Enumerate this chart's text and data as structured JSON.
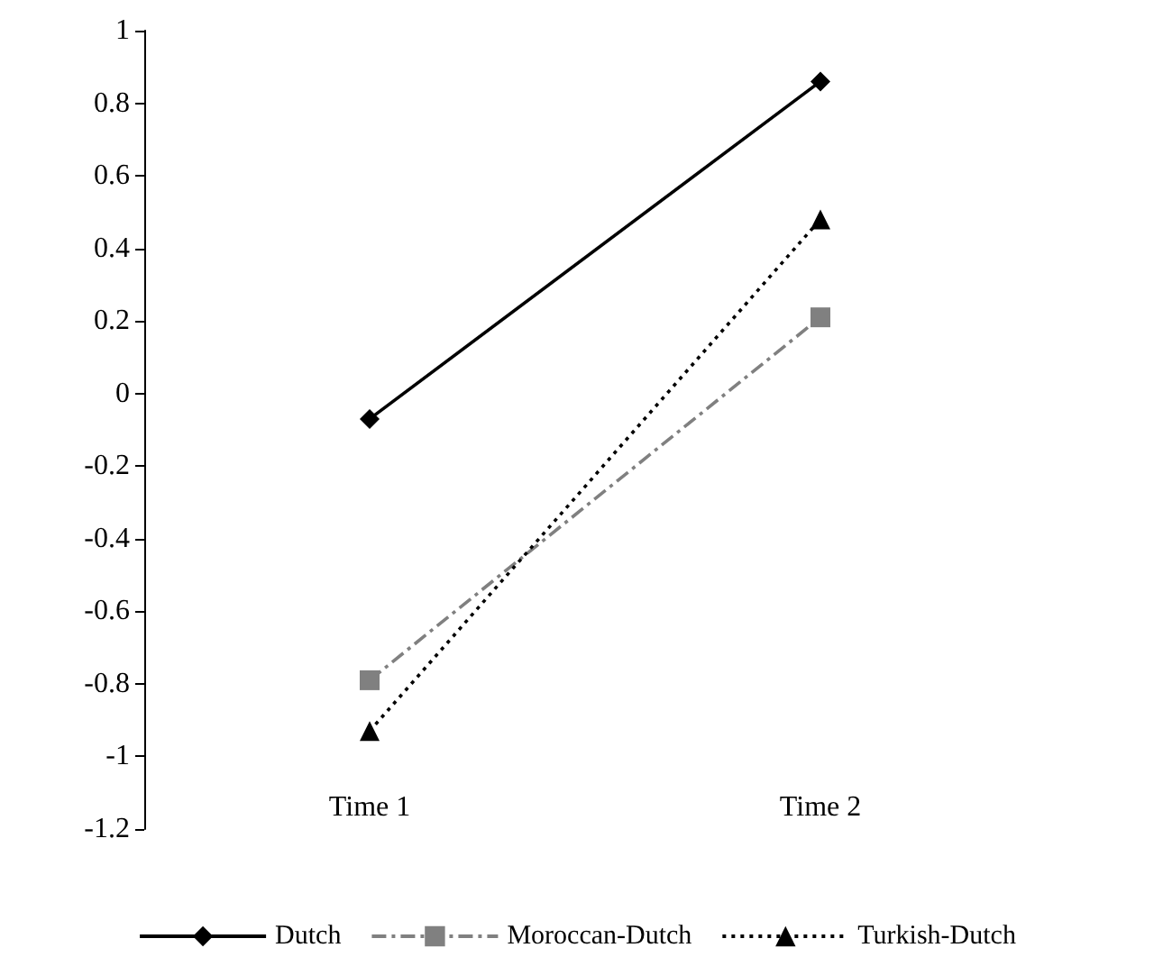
{
  "chart_data": {
    "type": "line",
    "categories": [
      "Time 1",
      "Time 2"
    ],
    "series": [
      {
        "name": "Dutch",
        "color": "#000000",
        "marker": "diamond",
        "line_style": "solid",
        "values": [
          -0.07,
          0.86
        ]
      },
      {
        "name": "Moroccan-Dutch",
        "color": "#808080",
        "marker": "square",
        "line_style": "dashed",
        "values": [
          -0.79,
          0.21
        ]
      },
      {
        "name": "Turkish-Dutch",
        "color": "#000000",
        "marker": "triangle",
        "line_style": "dotted",
        "values": [
          -0.93,
          0.48
        ]
      }
    ],
    "ylim": [
      -1.2,
      1
    ],
    "yticks": [
      -1.2,
      -1,
      -0.8,
      -0.6,
      -0.4,
      -0.2,
      0,
      0.2,
      0.4,
      0.6,
      0.8,
      1
    ],
    "grid": false,
    "legend": "bottom"
  }
}
